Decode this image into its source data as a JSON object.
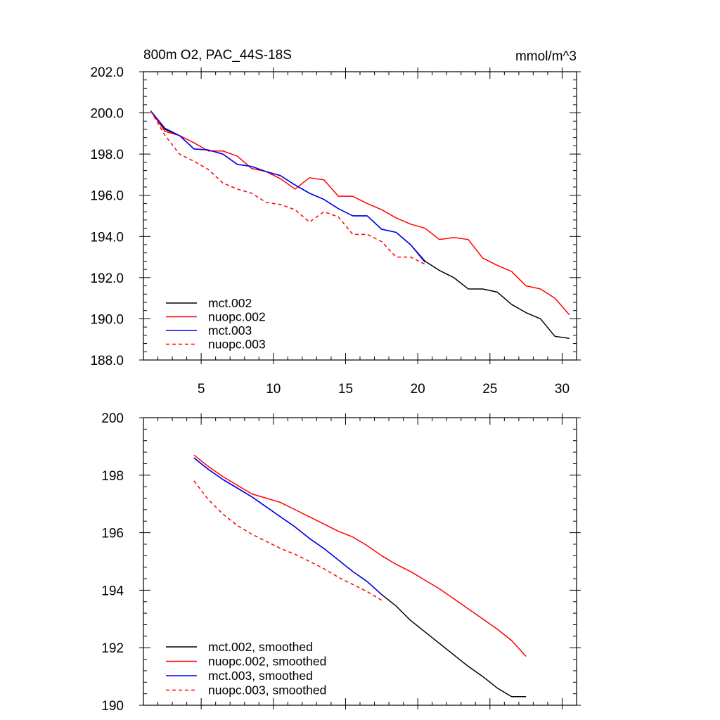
{
  "chart_data": [
    {
      "type": "line",
      "title": "800m O2, PAC_44S-18S",
      "units_label": "mmol/m^3",
      "xlabel": "",
      "ylabel": "",
      "xlim": [
        1,
        31
      ],
      "ylim": [
        188,
        202
      ],
      "x_ticks": [
        5,
        10,
        15,
        20,
        25,
        30
      ],
      "x_tick_labels": [
        "5",
        "10",
        "15",
        "20",
        "25",
        "30"
      ],
      "y_ticks": [
        188,
        190,
        192,
        194,
        196,
        198,
        200,
        202
      ],
      "y_tick_labels": [
        "188.0",
        "190.0",
        "192.0",
        "194.0",
        "196.0",
        "198.0",
        "200.0",
        "202.0"
      ],
      "grid": false,
      "legend_position": "bottom-left",
      "series": [
        {
          "name": "mct.002",
          "color": "#000000",
          "dash": "solid",
          "x": [
            1.5,
            2.5,
            3.5,
            4.5,
            5.5,
            6.5,
            7.5,
            8.5,
            9.5,
            10.5,
            11.5,
            12.5,
            13.5,
            14.5,
            15.5,
            16.5,
            17.5,
            18.5,
            19.5,
            20.5,
            21.5,
            22.5,
            23.5,
            24.5,
            25.5,
            26.5,
            27.5,
            28.5,
            29.5,
            30.5
          ],
          "y": [
            200.1,
            199.2,
            198.9,
            198.25,
            198.2,
            198.0,
            197.5,
            197.4,
            197.15,
            196.95,
            196.5,
            196.1,
            195.8,
            195.35,
            195.0,
            195.0,
            194.35,
            194.2,
            193.6,
            192.8,
            192.35,
            192.0,
            191.45,
            191.45,
            191.3,
            190.7,
            190.3,
            190.0,
            189.15,
            189.05
          ]
        },
        {
          "name": "nuopc.002",
          "color": "#ff0000",
          "dash": "solid",
          "x": [
            1.5,
            2.5,
            3.5,
            4.5,
            5.5,
            6.5,
            7.5,
            8.5,
            9.5,
            10.5,
            11.5,
            12.5,
            13.5,
            14.5,
            15.5,
            16.5,
            17.5,
            18.5,
            19.5,
            20.5,
            21.5,
            22.5,
            23.5,
            24.5,
            25.5,
            26.5,
            27.5,
            28.5,
            29.5,
            30.5
          ],
          "y": [
            200.1,
            199.1,
            198.9,
            198.55,
            198.15,
            198.15,
            197.9,
            197.3,
            197.15,
            196.8,
            196.3,
            196.85,
            196.75,
            195.95,
            195.95,
            195.6,
            195.3,
            194.9,
            194.6,
            194.4,
            193.85,
            193.95,
            193.85,
            192.95,
            192.6,
            192.3,
            191.6,
            191.45,
            191.0,
            190.2
          ]
        },
        {
          "name": "mct.003",
          "color": "#0000ff",
          "dash": "solid",
          "x": [
            1.5,
            2.5,
            3.5,
            4.5,
            5.5,
            6.5,
            7.5,
            8.5,
            9.5,
            10.5,
            11.5,
            12.5,
            13.5,
            14.5,
            15.5,
            16.5,
            17.5,
            18.5,
            19.5,
            20.5
          ],
          "y": [
            200.1,
            199.25,
            198.9,
            198.25,
            198.2,
            198.0,
            197.5,
            197.4,
            197.15,
            196.95,
            196.5,
            196.1,
            195.8,
            195.35,
            195.0,
            195.0,
            194.35,
            194.2,
            193.6,
            192.75
          ]
        },
        {
          "name": "nuopc.003",
          "color": "#ff0000",
          "dash": "dashed",
          "x": [
            1.5,
            2.5,
            3.5,
            4.5,
            5.5,
            6.5,
            7.5,
            8.5,
            9.5,
            10.5,
            11.5,
            12.5,
            13.5,
            14.5,
            15.5,
            16.5,
            17.5,
            18.5,
            19.5,
            20.5
          ],
          "y": [
            200.1,
            198.9,
            198.0,
            197.65,
            197.25,
            196.6,
            196.3,
            196.1,
            195.65,
            195.55,
            195.3,
            194.7,
            195.2,
            194.95,
            194.1,
            194.1,
            193.75,
            193.0,
            193.0,
            192.65
          ]
        }
      ]
    },
    {
      "type": "line",
      "title": "",
      "xlabel": "",
      "ylabel": "",
      "xlim": [
        1,
        31
      ],
      "ylim": [
        190,
        200
      ],
      "x_ticks": [
        5,
        10,
        15,
        20,
        25,
        30
      ],
      "y_ticks": [
        190,
        192,
        194,
        196,
        198,
        200
      ],
      "y_tick_labels": [
        "190",
        "192",
        "194",
        "196",
        "198",
        "200"
      ],
      "grid": false,
      "legend_position": "bottom-left",
      "series": [
        {
          "name": "mct.002, smoothed",
          "color": "#000000",
          "dash": "solid",
          "x": [
            4.5,
            5.5,
            6.5,
            7.5,
            8.5,
            9.5,
            10.5,
            11.5,
            12.5,
            13.5,
            14.5,
            15.5,
            16.5,
            17.5,
            18.5,
            19.5,
            20.5,
            21.5,
            22.5,
            23.5,
            24.5,
            25.5,
            26.5,
            27.5
          ],
          "y": [
            198.6,
            198.2,
            197.85,
            197.55,
            197.25,
            196.9,
            196.55,
            196.2,
            195.8,
            195.45,
            195.05,
            194.65,
            194.3,
            193.85,
            193.45,
            192.95,
            192.55,
            192.15,
            191.75,
            191.35,
            191.0,
            190.6,
            190.3,
            190.3
          ]
        },
        {
          "name": "nuopc.002, smoothed",
          "color": "#ff0000",
          "dash": "solid",
          "x": [
            4.5,
            5.5,
            6.5,
            7.5,
            8.5,
            9.5,
            10.5,
            11.5,
            12.5,
            13.5,
            14.5,
            15.5,
            16.5,
            17.5,
            18.5,
            19.5,
            20.5,
            21.5,
            22.5,
            23.5,
            24.5,
            25.5,
            26.5,
            27.5
          ],
          "y": [
            198.7,
            198.3,
            197.95,
            197.65,
            197.35,
            197.2,
            197.05,
            196.8,
            196.55,
            196.3,
            196.05,
            195.85,
            195.55,
            195.2,
            194.9,
            194.65,
            194.35,
            194.05,
            193.7,
            193.35,
            193.0,
            192.65,
            192.25,
            191.7
          ]
        },
        {
          "name": "mct.003, smoothed",
          "color": "#0000ff",
          "dash": "solid",
          "x": [
            4.5,
            5.5,
            6.5,
            7.5,
            8.5,
            9.5,
            10.5,
            11.5,
            12.5,
            13.5,
            14.5,
            15.5,
            16.5,
            17.5
          ],
          "y": [
            198.6,
            198.2,
            197.85,
            197.55,
            197.25,
            196.9,
            196.55,
            196.2,
            195.8,
            195.45,
            195.05,
            194.65,
            194.3,
            193.85
          ]
        },
        {
          "name": "nuopc.003, smoothed",
          "color": "#ff0000",
          "dash": "dashed",
          "x": [
            4.5,
            5.5,
            6.5,
            7.5,
            8.5,
            9.5,
            10.5,
            11.5,
            12.5,
            13.5,
            14.5,
            15.5,
            16.5,
            17.5
          ],
          "y": [
            197.8,
            197.15,
            196.65,
            196.25,
            195.95,
            195.7,
            195.45,
            195.25,
            195.0,
            194.75,
            194.45,
            194.2,
            193.95,
            193.65
          ]
        }
      ]
    }
  ]
}
